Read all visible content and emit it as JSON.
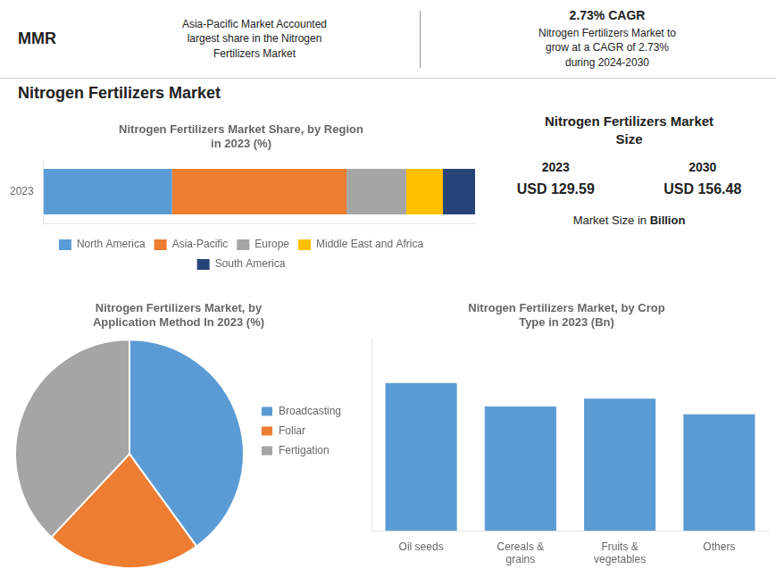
{
  "title": "Nitrogen Fertilizers Market",
  "annotations": [
    "MMR",
    "Asia-Pacific Market Accounted\nlargest share in the Nitrogen\nFertilizers Market",
    "2.73% CAGR",
    "Nitrogen Fertilizers Market to\ngrow at a CAGR of 2.73%\nduring 2024-2030",
    "Nitrogen Fertilizers Market\nSize",
    "2023",
    "2030",
    "USD 129.59",
    "USD 156.48",
    "Market Size in ",
    "Billion"
  ],
  "chart_data": [
    {
      "type": "bar",
      "orientation": "horizontal",
      "stacked": true,
      "title": "Nitrogen Fertilizers Market Share, by Region\nin 2023 (%)",
      "categories": [
        "2023"
      ],
      "series": [
        {
          "name": "North America",
          "color": "#5b9bd5",
          "values": [
            0.28
          ]
        },
        {
          "name": "Asia-Pacific",
          "color": "#ed7d31",
          "values": [
            0.38
          ]
        },
        {
          "name": "Europe",
          "color": "#a5a5a5",
          "values": [
            0.13
          ]
        },
        {
          "name": "Middle East and Africa",
          "color": "#ffc000",
          "values": [
            0.08
          ]
        },
        {
          "name": "South America",
          "color": "#264478",
          "values": [
            0.07
          ]
        }
      ],
      "xlim": [
        0,
        0.94
      ],
      "tick_labels": "y",
      "grid": false,
      "legend": "bottom"
    },
    {
      "type": "pie",
      "title": "Nitrogen Fertilizers Market, by\nApplication Method In 2023 (%)",
      "categories": [
        "Broadcasting",
        "Foliar",
        "Fertigation"
      ],
      "values": [
        0.4,
        0.22,
        0.38
      ],
      "colors": [
        "#5b9bd5",
        "#ed7d31",
        "#a5a5a5"
      ],
      "legend": "right"
    },
    {
      "type": "bar",
      "title": "Nitrogen Fertilizers Market, by Crop\nType in 2023 (Bn)",
      "categories": [
        "Oil seeds",
        "Cereals &\ngrains",
        "Fruits &\nvegetables",
        "Others"
      ],
      "values": [
        38,
        32,
        34,
        30
      ],
      "color": "#5b9bd5",
      "ylim": [
        0,
        49.4
      ],
      "tick_labels": "x",
      "grid": false
    }
  ]
}
